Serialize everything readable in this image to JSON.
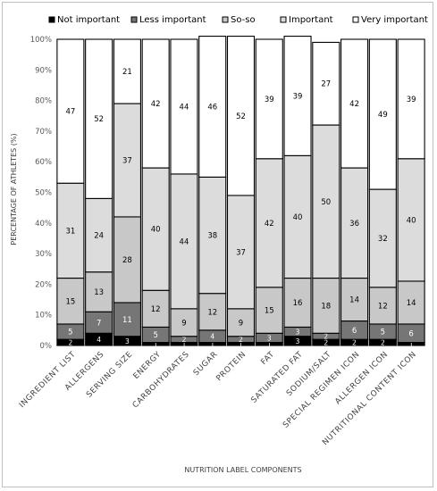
{
  "chart_data": {
    "type": "bar",
    "stacked": true,
    "percent": true,
    "xlabel": "NUTRITION LABEL COMPONENTS",
    "ylabel": "PERCENTAGE OF ATHLETES (%)",
    "ylim": [
      0,
      100
    ],
    "yticks": [
      "0%",
      "10%",
      "20%",
      "30%",
      "40%",
      "50%",
      "60%",
      "70%",
      "80%",
      "90%",
      "100%"
    ],
    "legend_position": "top",
    "grid": false,
    "categories": [
      "INGREDIENT LIST",
      "ALLERGENS",
      "SERVING SIZE",
      "ENERGY",
      "CARBOHYDRATES",
      "SUGAR",
      "PROTEIN",
      "FAT",
      "SATURATED FAT",
      "SODIUM/SALT",
      "SPECIAL REGIMEN ICON",
      "ALLERGEN ICON",
      "NUTRITIONAL CONTENT ICON"
    ],
    "series": [
      {
        "name": "Not important",
        "color": "#000000",
        "label_color": "#ffffff",
        "values": [
          2,
          4,
          3,
          1,
          1,
          1,
          1,
          1,
          3,
          2,
          2,
          2,
          1
        ]
      },
      {
        "name": "Less important",
        "color": "#767676",
        "label_color": "#ffffff",
        "values": [
          5,
          7,
          11,
          5,
          2,
          4,
          2,
          3,
          3,
          2,
          6,
          5,
          6
        ]
      },
      {
        "name": "So-so",
        "color": "#c8c8c8",
        "label_color": "#000000",
        "values": [
          15,
          13,
          28,
          12,
          9,
          12,
          9,
          15,
          16,
          18,
          14,
          12,
          14
        ]
      },
      {
        "name": "Important",
        "color": "#dcdcdc",
        "label_color": "#000000",
        "values": [
          31,
          24,
          37,
          40,
          44,
          38,
          37,
          42,
          40,
          50,
          36,
          32,
          40
        ]
      },
      {
        "name": "Very important",
        "color": "#ffffff",
        "label_color": "#000000",
        "values": [
          47,
          52,
          21,
          42,
          44,
          46,
          52,
          39,
          39,
          27,
          42,
          49,
          39
        ]
      }
    ]
  }
}
